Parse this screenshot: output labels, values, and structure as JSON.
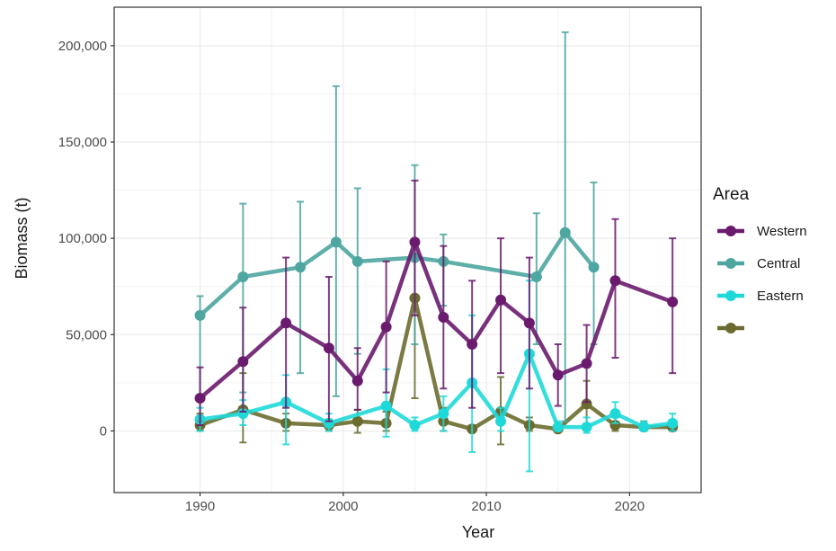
{
  "chart_data": {
    "type": "line",
    "xlabel": "Year",
    "ylabel": "Biomass (t)",
    "xlim": [
      1984,
      2025
    ],
    "ylim": [
      -32000,
      220000
    ],
    "x_ticks": [
      1990,
      2000,
      2010,
      2020
    ],
    "x_tick_labels": [
      "1990",
      "2000",
      "2010",
      "2020"
    ],
    "y_ticks": [
      0,
      50000,
      100000,
      150000,
      200000
    ],
    "y_tick_labels": [
      "0",
      "50,000",
      "100,000",
      "150,000",
      "200,000"
    ],
    "grid": true,
    "legend": {
      "title": "Area",
      "position": "right"
    },
    "series": [
      {
        "name": "Western",
        "color": "#6a1b6e",
        "points": [
          {
            "x": 1990,
            "y": 17000,
            "lo": 3000,
            "hi": 33000
          },
          {
            "x": 1993,
            "y": 36000,
            "lo": 10000,
            "hi": 64000
          },
          {
            "x": 1996,
            "y": 56000,
            "lo": 12000,
            "hi": 90000
          },
          {
            "x": 1999,
            "y": 43000,
            "lo": 5000,
            "hi": 80000
          },
          {
            "x": 2001,
            "y": 26000,
            "lo": 11000,
            "hi": 43000
          },
          {
            "x": 2003,
            "y": 54000,
            "lo": 20000,
            "hi": 88000
          },
          {
            "x": 2005,
            "y": 98000,
            "lo": 60000,
            "hi": 130000
          },
          {
            "x": 2007,
            "y": 59000,
            "lo": 22000,
            "hi": 96000
          },
          {
            "x": 2009,
            "y": 45000,
            "lo": 12000,
            "hi": 78000
          },
          {
            "x": 2011,
            "y": 68000,
            "lo": 30000,
            "hi": 100000
          },
          {
            "x": 2013,
            "y": 56000,
            "lo": 22000,
            "hi": 90000
          },
          {
            "x": 2015,
            "y": 29000,
            "lo": 13000,
            "hi": 45000
          },
          {
            "x": 2017,
            "y": 35000,
            "lo": 15000,
            "hi": 55000
          },
          {
            "x": 2019,
            "y": 78000,
            "lo": 38000,
            "hi": 110000
          },
          {
            "x": 2023,
            "y": 67000,
            "lo": 30000,
            "hi": 100000
          }
        ]
      },
      {
        "name": "Central",
        "color": "#4da6a0",
        "points": [
          {
            "x": 1990,
            "y": 60000,
            "lo": 5000,
            "hi": 70000
          },
          {
            "x": 1993,
            "y": 80000,
            "lo": 20000,
            "hi": 118000
          },
          {
            "x": 1997,
            "y": 85000,
            "lo": 30000,
            "hi": 119000
          },
          {
            "x": 1999.5,
            "y": 98000,
            "lo": 18000,
            "hi": 179000
          },
          {
            "x": 2001,
            "y": 88000,
            "lo": 40000,
            "hi": 126000
          },
          {
            "x": 2005,
            "y": 90000,
            "lo": 45000,
            "hi": 138000
          },
          {
            "x": 2007,
            "y": 88000,
            "lo": 65000,
            "hi": 102000
          },
          {
            "x": 2013.5,
            "y": 80000,
            "lo": 45000,
            "hi": 113000
          },
          {
            "x": 2015.5,
            "y": 103000,
            "lo": 5000,
            "hi": 207000
          },
          {
            "x": 2017.5,
            "y": 85000,
            "lo": 45000,
            "hi": 129000
          }
        ]
      },
      {
        "name": "Eastern",
        "color": "#1fd9d9",
        "points": [
          {
            "x": 1990,
            "y": 6000,
            "lo": 0,
            "hi": 12000
          },
          {
            "x": 1993,
            "y": 9000,
            "lo": 3000,
            "hi": 16000
          },
          {
            "x": 1996,
            "y": 15000,
            "lo": -7000,
            "hi": 29000
          },
          {
            "x": 1999,
            "y": 4000,
            "lo": 0,
            "hi": 9000
          },
          {
            "x": 2003,
            "y": 13000,
            "lo": -3000,
            "hi": 32000
          },
          {
            "x": 2005,
            "y": 3000,
            "lo": 0,
            "hi": 7000
          },
          {
            "x": 2007,
            "y": 9000,
            "lo": 0,
            "hi": 18000
          },
          {
            "x": 2009,
            "y": 25000,
            "lo": -11000,
            "hi": 60000
          },
          {
            "x": 2011,
            "y": 5000,
            "lo": 0,
            "hi": 12000
          },
          {
            "x": 2013,
            "y": 40000,
            "lo": -21000,
            "hi": 78000
          },
          {
            "x": 2015,
            "y": 2000,
            "lo": 0,
            "hi": 5000
          },
          {
            "x": 2017,
            "y": 2000,
            "lo": -1000,
            "hi": 7000
          },
          {
            "x": 2019,
            "y": 9000,
            "lo": 4000,
            "hi": 15000
          },
          {
            "x": 2021,
            "y": 2000,
            "lo": 0,
            "hi": 5000
          },
          {
            "x": 2023,
            "y": 4000,
            "lo": 0,
            "hi": 9000
          }
        ]
      },
      {
        "name": "",
        "color": "#6b6b2f",
        "points": [
          {
            "x": 1990,
            "y": 3000,
            "lo": 0,
            "hi": 9000
          },
          {
            "x": 1993,
            "y": 11000,
            "lo": -6000,
            "hi": 30000
          },
          {
            "x": 1996,
            "y": 4000,
            "lo": 0,
            "hi": 9000
          },
          {
            "x": 1999,
            "y": 3000,
            "lo": 0,
            "hi": 6000
          },
          {
            "x": 2001,
            "y": 5000,
            "lo": -1000,
            "hi": 11000
          },
          {
            "x": 2003,
            "y": 4000,
            "lo": 0,
            "hi": 10000
          },
          {
            "x": 2005,
            "y": 69000,
            "lo": 17000,
            "hi": 90000
          },
          {
            "x": 2007,
            "y": 5000,
            "lo": 0,
            "hi": 12000
          },
          {
            "x": 2009,
            "y": 1000,
            "lo": 0,
            "hi": 3000
          },
          {
            "x": 2011,
            "y": 10000,
            "lo": -7000,
            "hi": 28000
          },
          {
            "x": 2013,
            "y": 3000,
            "lo": 0,
            "hi": 7000
          },
          {
            "x": 2015,
            "y": 1000,
            "lo": 0,
            "hi": 3000
          },
          {
            "x": 2017,
            "y": 14000,
            "lo": 2000,
            "hi": 26000
          },
          {
            "x": 2019,
            "y": 3000,
            "lo": 0,
            "hi": 7000
          },
          {
            "x": 2021,
            "y": 2000,
            "lo": 0,
            "hi": 5000
          },
          {
            "x": 2023,
            "y": 2000,
            "lo": 0,
            "hi": 5000
          }
        ]
      }
    ]
  }
}
